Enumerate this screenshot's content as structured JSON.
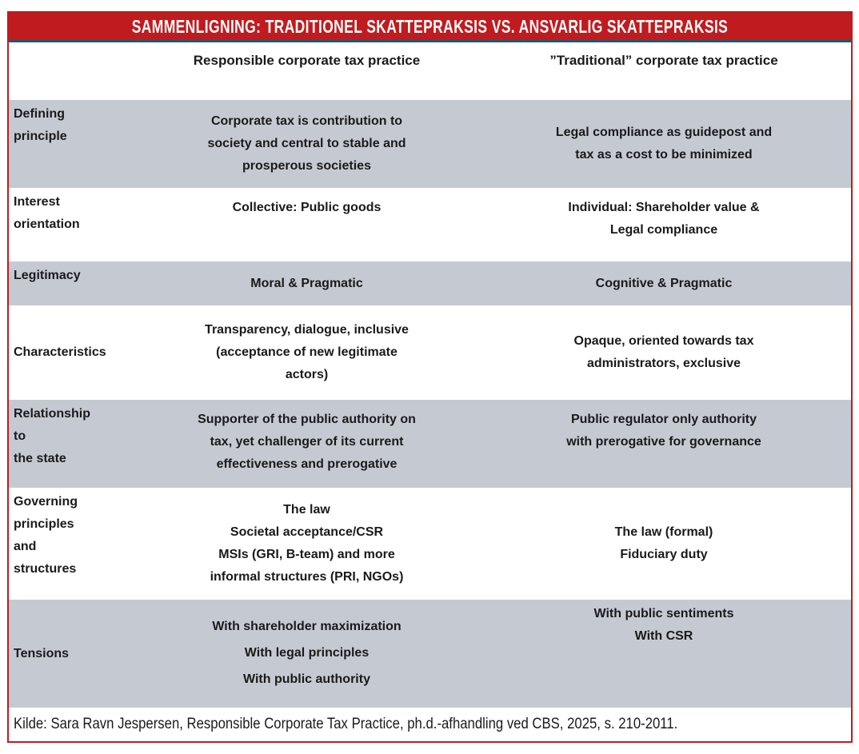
{
  "title": "SAMMENLIGNING: TRADITIONEL SKATTEPRAKSIS VS. ANSVARLIG SKATTEPRAKSIS",
  "column_headers": {
    "responsible": "Responsible corporate tax practice",
    "traditional": "”Traditional” corporate tax practice"
  },
  "rows": [
    {
      "label": [
        "Defining",
        "principle"
      ],
      "responsible": [
        "Corporate tax is contribution to",
        "society and central to stable and",
        "prosperous societies"
      ],
      "traditional": [
        "Legal compliance as guidepost and",
        "tax as a cost to be minimized"
      ]
    },
    {
      "label": [
        "Interest",
        "orientation"
      ],
      "responsible": [
        "Collective: Public goods"
      ],
      "traditional": [
        "Individual: Shareholder value &",
        "Legal compliance"
      ]
    },
    {
      "label": [
        "Legitimacy"
      ],
      "responsible": [
        "Moral & Pragmatic"
      ],
      "traditional": [
        "Cognitive & Pragmatic"
      ]
    },
    {
      "label": [
        "Characteristics"
      ],
      "responsible": [
        "Transparency, dialogue, inclusive",
        "(acceptance of new legitimate",
        "actors)"
      ],
      "traditional": [
        "Opaque, oriented towards tax",
        "administrators, exclusive"
      ]
    },
    {
      "label": [
        "Relationship",
        "to",
        "the state"
      ],
      "responsible": [
        "Supporter of the public authority on",
        "tax, yet challenger of its current",
        "effectiveness and prerogative"
      ],
      "traditional": [
        "Public regulator only authority",
        "with prerogative for governance"
      ]
    },
    {
      "label": [
        "Governing",
        "principles",
        "and",
        "structures"
      ],
      "responsible": [
        "The law",
        "Societal acceptance/CSR",
        "MSIs (GRI, B-team) and more",
        "informal structures (PRI, NGOs)"
      ],
      "traditional": [
        "The law (formal)",
        "Fiduciary duty"
      ]
    },
    {
      "label": [
        "Tensions"
      ],
      "responsible": [
        "With shareholder maximization",
        "With legal principles",
        "With public authority"
      ],
      "traditional": [
        "With public sentiments",
        "With CSR"
      ]
    }
  ],
  "source": "Kilde: Sara Ravn Jespersen, Responsible Corporate Tax Practice, ph.d.-afhandling ved CBS, 2025, s. 210-2011.",
  "colors": {
    "header_red": "#c01b1e",
    "underline_navy": "#1f5876",
    "row_gray": "#c5cad2",
    "border_red": "#c01b1e",
    "text": "#1a1a1a",
    "title_text": "#ffffff"
  }
}
